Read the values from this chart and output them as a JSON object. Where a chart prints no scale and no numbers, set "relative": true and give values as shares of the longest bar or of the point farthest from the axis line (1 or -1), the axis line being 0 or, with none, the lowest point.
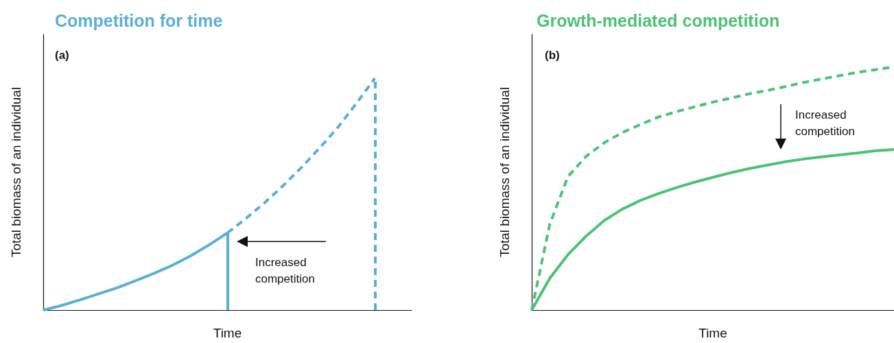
{
  "chart_data": [
    {
      "type": "line",
      "title": "Competition for time",
      "xlabel": "Time",
      "ylabel": "Total biomass of an individual",
      "relative": true,
      "categories": [
        null,
        null,
        null,
        null,
        null,
        null,
        null,
        null,
        null,
        null,
        null,
        null,
        null,
        null,
        null,
        null,
        null,
        null,
        null,
        null,
        null
      ],
      "series": [
        {
          "color": "#5aafd8",
          "line_style": "solid",
          "values": [
            0,
            0.02,
            0.044,
            0.07,
            0.096,
            0.126,
            0.158,
            0.193,
            0.234,
            0.281,
            0.333,
            null,
            null,
            null,
            null,
            null,
            null,
            null,
            null,
            null,
            null
          ]
        },
        {
          "color": "#5aafd8",
          "line_style": "dashed",
          "values": [
            null,
            null,
            null,
            null,
            null,
            null,
            null,
            null,
            null,
            null,
            0.333,
            0.395,
            0.462,
            0.535,
            0.614,
            0.699,
            0.789,
            0.892,
            1,
            null,
            null
          ]
        }
      ],
      "annotations": [
        "(a)",
        "Increased competition"
      ]
    },
    {
      "type": "line",
      "title": "Growth-mediated competition",
      "xlabel": "Time",
      "ylabel": "Total biomass of an individual",
      "relative": true,
      "categories": [
        null,
        null,
        null,
        null,
        null,
        null,
        null,
        null,
        null,
        null,
        null,
        null,
        null,
        null,
        null,
        null,
        null,
        null,
        null,
        null,
        null
      ],
      "series": [
        {
          "color": "#4cc374",
          "line_style": "dashed",
          "values": [
            0,
            0.354,
            0.549,
            0.632,
            0.688,
            0.73,
            0.763,
            0.794,
            0.816,
            0.836,
            0.855,
            0.872,
            0.889,
            0.903,
            0.919,
            0.936,
            0.95,
            0.964,
            0.978,
            0.989,
            1
          ]
        },
        {
          "color": "#4cc374",
          "line_style": "solid",
          "values": [
            0,
            0.131,
            0.228,
            0.304,
            0.368,
            0.415,
            0.451,
            0.479,
            0.504,
            0.526,
            0.546,
            0.565,
            0.582,
            0.596,
            0.61,
            0.621,
            0.63,
            0.638,
            0.646,
            0.655,
            0.66
          ]
        }
      ],
      "annotations": [
        "(b)",
        "Increased competition"
      ]
    }
  ]
}
